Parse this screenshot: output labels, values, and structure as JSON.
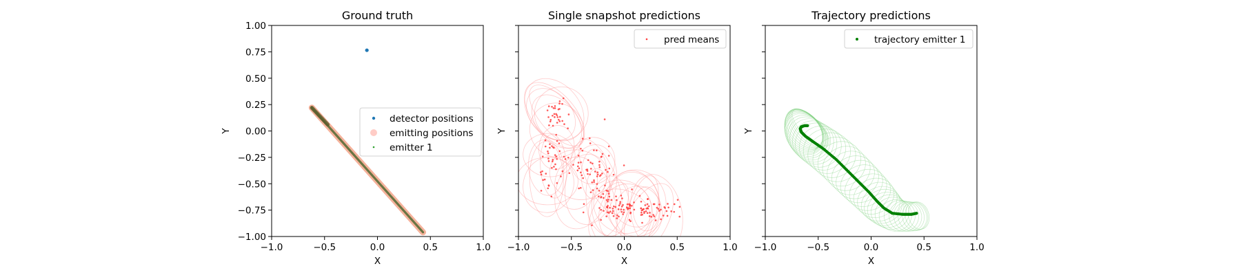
{
  "chart_data": [
    {
      "type": "scatter",
      "title": "Ground truth",
      "xlabel": "X",
      "ylabel": "Y",
      "xlim": [
        -1.0,
        1.0
      ],
      "ylim": [
        -1.0,
        1.0
      ],
      "xticks": [
        "−1.0",
        "−0.5",
        "0.0",
        "0.5",
        "1.0"
      ],
      "yticks": [
        "1.00",
        "0.75",
        "0.50",
        "0.25",
        "0.00",
        "−0.25",
        "−0.50",
        "−0.75",
        "−1.00"
      ],
      "legend_position": "center-right",
      "series": [
        {
          "name": "detector positions",
          "kind": "points",
          "color": "#1f77b4",
          "x": [
            -0.1
          ],
          "y": [
            0.765
          ]
        },
        {
          "name": "emitting positions",
          "kind": "line-band",
          "color": "#ffaaa0",
          "x": [
            -0.62,
            0.43
          ],
          "y": [
            0.22,
            -0.96
          ]
        },
        {
          "name": "emitter 1",
          "kind": "line",
          "color": "#2ca02c",
          "x": [
            -0.62,
            0.43
          ],
          "y": [
            0.22,
            -0.96
          ]
        }
      ]
    },
    {
      "type": "scatter",
      "title": "Single snapshot predictions",
      "xlabel": "X",
      "ylabel": "Y",
      "xlim": [
        -1.0,
        1.0
      ],
      "ylim": [
        -1.0,
        1.0
      ],
      "xticks": [
        "−1.0",
        "−0.5",
        "0.0",
        "0.5",
        "1.0"
      ],
      "yticks": [],
      "legend_position": "top-right",
      "series": [
        {
          "name": "pred means",
          "kind": "points",
          "color": "#ff3b3b",
          "clusters": [
            {
              "cx": -0.65,
              "cy": 0.14,
              "sx": 0.05,
              "sy": 0.08,
              "n": 30
            },
            {
              "cx": -0.7,
              "cy": -0.3,
              "sx": 0.06,
              "sy": 0.14,
              "n": 40
            },
            {
              "cx": -0.28,
              "cy": -0.38,
              "sx": 0.12,
              "sy": 0.18,
              "n": 70
            },
            {
              "cx": -0.05,
              "cy": -0.72,
              "sx": 0.12,
              "sy": 0.06,
              "n": 55
            },
            {
              "cx": 0.22,
              "cy": -0.75,
              "sx": 0.13,
              "sy": 0.06,
              "n": 60
            }
          ]
        }
      ],
      "uncertainty_ellipse_color": "#ff8c8c"
    },
    {
      "type": "scatter",
      "title": "Trajectory predictions",
      "xlabel": "X",
      "ylabel": "Y",
      "xlim": [
        -1.0,
        1.0
      ],
      "ylim": [
        -1.0,
        1.0
      ],
      "xticks": [
        "−1.0",
        "−0.5",
        "0.0",
        "0.5",
        "1.0"
      ],
      "yticks": [],
      "legend_position": "top-right",
      "series": [
        {
          "name": "trajectory emitter 1",
          "kind": "points",
          "color": "#008000",
          "x": [
            -0.6,
            -0.63,
            -0.66,
            -0.67,
            -0.66,
            -0.62,
            -0.55,
            -0.45,
            -0.33,
            -0.22,
            -0.12,
            -0.02,
            0.06,
            0.12,
            0.2,
            0.3,
            0.38,
            0.43
          ],
          "y": [
            0.05,
            0.05,
            0.04,
            0.02,
            -0.01,
            -0.05,
            -0.1,
            -0.17,
            -0.27,
            -0.38,
            -0.48,
            -0.58,
            -0.67,
            -0.73,
            -0.78,
            -0.79,
            -0.79,
            -0.78
          ]
        }
      ],
      "uncertainty_ellipse_color": "#7fd17f"
    }
  ]
}
